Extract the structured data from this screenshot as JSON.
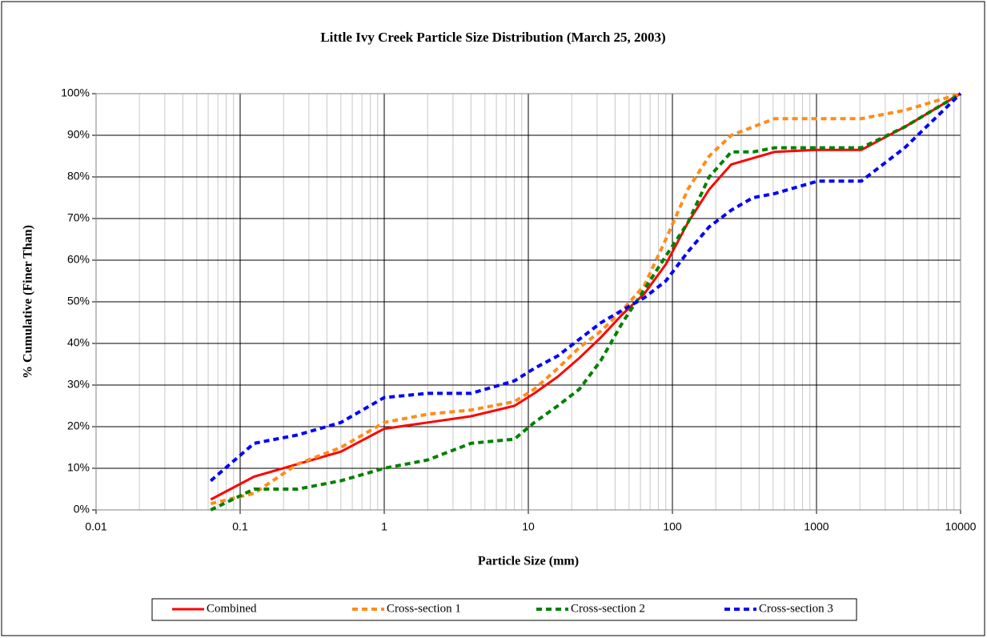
{
  "chart_data": {
    "type": "line",
    "title": "Little Ivy Creek Particle Size Distribution (March 25, 2003)",
    "x_label": "Particle Size (mm)",
    "y_label": "% Cumulative (Finer Than)",
    "x": [
      0.0625,
      0.125,
      0.25,
      0.5,
      1,
      2,
      4,
      8,
      11,
      16,
      22.6,
      32,
      45,
      64,
      90,
      128,
      180,
      256,
      362,
      512,
      1024,
      2048,
      4096,
      10000
    ],
    "series": [
      {
        "name": "Combined",
        "color": "#ff0000",
        "line_style": "solid",
        "values": [
          2.5,
          8,
          11,
          14,
          19.5,
          21,
          22.5,
          25,
          28,
          32,
          36.5,
          41.5,
          47,
          52,
          59,
          69,
          77,
          83,
          84.5,
          86,
          86.5,
          86.5,
          92,
          100
        ]
      },
      {
        "name": "Cross-section 1",
        "color": "#ff8c1a",
        "line_style": "dashed",
        "values": [
          1.5,
          4,
          11,
          15,
          21,
          23,
          24,
          26,
          29,
          34,
          39,
          43,
          48,
          54,
          65,
          77,
          85,
          90,
          92,
          94,
          94,
          94,
          96,
          100
        ]
      },
      {
        "name": "Cross-section 2",
        "color": "#008000",
        "line_style": "dashed",
        "values": [
          0,
          5,
          5,
          7,
          10,
          12,
          16,
          17,
          21,
          25,
          29,
          36,
          45,
          53,
          61,
          69,
          80,
          86,
          86,
          87,
          87,
          87,
          92,
          100
        ]
      },
      {
        "name": "Cross-section 3",
        "color": "#0000ff",
        "line_style": "dashed",
        "values": [
          7,
          16,
          18,
          21,
          27,
          28,
          28,
          31,
          34,
          37,
          41,
          45,
          48,
          51,
          55,
          62,
          68,
          72,
          75,
          76,
          79,
          79,
          87,
          100
        ]
      }
    ],
    "x_log_scale": true,
    "xlim": [
      0.01,
      10000
    ],
    "xticks": [
      0.01,
      0.1,
      1,
      10,
      100,
      1000,
      10000
    ],
    "ylim": [
      0,
      100
    ],
    "yticks": [
      {
        "value": 0,
        "label": "0%"
      },
      {
        "value": 10,
        "label": "10%"
      },
      {
        "value": 20,
        "label": "20%"
      },
      {
        "value": 30,
        "label": "30%"
      },
      {
        "value": 40,
        "label": "40%"
      },
      {
        "value": 50,
        "label": "50%"
      },
      {
        "value": 60,
        "label": "60%"
      },
      {
        "value": 70,
        "label": "70%"
      },
      {
        "value": 80,
        "label": "80%"
      },
      {
        "value": 90,
        "label": "90%"
      },
      {
        "value": 100,
        "label": "100%"
      }
    ],
    "grid": true,
    "legend": "bottom"
  }
}
